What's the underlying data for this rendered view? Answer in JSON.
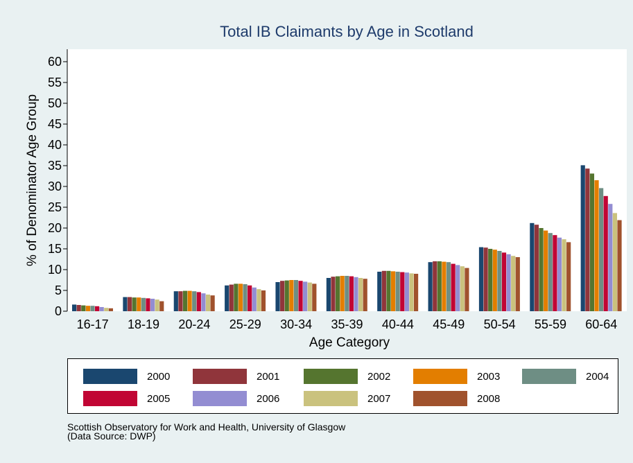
{
  "chart_data": {
    "type": "bar",
    "title": "Total IB Claimants by Age in Scotland",
    "xlabel": "Age Category",
    "ylabel": "% of Denominator Age Group",
    "ylim": [
      0,
      63
    ],
    "yticks": [
      0,
      5,
      10,
      15,
      20,
      25,
      30,
      35,
      40,
      45,
      50,
      55,
      60
    ],
    "grid": false,
    "legend_position": "bottom",
    "categories": [
      "16-17",
      "18-19",
      "20-24",
      "25-29",
      "30-34",
      "35-39",
      "40-44",
      "45-49",
      "50-54",
      "55-59",
      "60-64"
    ],
    "series": [
      {
        "name": "2000",
        "color": "#1a476f",
        "values": [
          1.6,
          3.4,
          4.8,
          6.2,
          7.0,
          8.0,
          9.5,
          11.8,
          15.4,
          21.2,
          35.1
        ]
      },
      {
        "name": "2001",
        "color": "#90353b",
        "values": [
          1.5,
          3.4,
          4.8,
          6.4,
          7.3,
          8.3,
          9.7,
          12.0,
          15.3,
          20.8,
          34.3
        ]
      },
      {
        "name": "2002",
        "color": "#55752f",
        "values": [
          1.4,
          3.3,
          4.9,
          6.6,
          7.4,
          8.4,
          9.7,
          12.0,
          15.0,
          20.0,
          33.1
        ]
      },
      {
        "name": "2003",
        "color": "#e37e00",
        "values": [
          1.3,
          3.3,
          4.9,
          6.6,
          7.5,
          8.5,
          9.6,
          11.9,
          14.8,
          19.4,
          31.5
        ]
      },
      {
        "name": "2004",
        "color": "#6e8e84",
        "values": [
          1.3,
          3.2,
          4.8,
          6.5,
          7.5,
          8.5,
          9.5,
          11.8,
          14.5,
          18.8,
          29.6
        ]
      },
      {
        "name": "2005",
        "color": "#c10534",
        "values": [
          1.2,
          3.1,
          4.6,
          6.2,
          7.3,
          8.4,
          9.4,
          11.4,
          14.1,
          18.3,
          27.7
        ]
      },
      {
        "name": "2006",
        "color": "#938dd2",
        "values": [
          1.0,
          3.0,
          4.3,
          5.7,
          7.1,
          8.2,
          9.3,
          11.1,
          13.7,
          17.7,
          25.8
        ]
      },
      {
        "name": "2007",
        "color": "#cac27e",
        "values": [
          0.8,
          2.8,
          4.0,
          5.3,
          6.9,
          8.0,
          9.1,
          10.8,
          13.3,
          17.3,
          23.6
        ]
      },
      {
        "name": "2008",
        "color": "#a0522d",
        "values": [
          0.7,
          2.4,
          3.8,
          5.0,
          6.6,
          7.8,
          9.0,
          10.4,
          13.0,
          16.6,
          21.9
        ]
      }
    ]
  },
  "source": {
    "line1": "Scottish Observatory for Work and Health, University of Glasgow",
    "line2": "(Data Source: DWP)"
  }
}
